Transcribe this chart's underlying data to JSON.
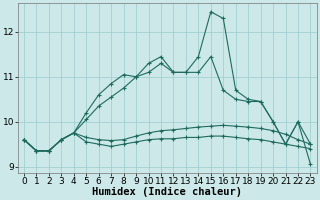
{
  "xlabel": "Humidex (Indice chaleur)",
  "background_color": "#cce8e8",
  "grid_color": "#99cccc",
  "line_color": "#1e6b5e",
  "x_values": [
    0,
    1,
    2,
    3,
    4,
    5,
    6,
    7,
    8,
    9,
    10,
    11,
    12,
    13,
    14,
    15,
    16,
    17,
    18,
    19,
    20,
    21,
    22,
    23
  ],
  "series": [
    [
      9.6,
      9.35,
      9.35,
      9.6,
      9.75,
      9.55,
      9.5,
      9.45,
      9.5,
      9.55,
      9.6,
      9.62,
      9.62,
      9.65,
      9.65,
      9.68,
      9.68,
      9.65,
      9.62,
      9.6,
      9.55,
      9.5,
      9.45,
      9.4
    ],
    [
      9.6,
      9.35,
      9.35,
      9.6,
      9.75,
      9.65,
      9.6,
      9.58,
      9.6,
      9.68,
      9.75,
      9.8,
      9.82,
      9.85,
      9.88,
      9.9,
      9.92,
      9.9,
      9.88,
      9.85,
      9.8,
      9.72,
      9.6,
      9.5
    ],
    [
      9.6,
      9.35,
      9.35,
      9.6,
      9.75,
      10.05,
      10.35,
      10.55,
      10.75,
      11.0,
      11.1,
      11.3,
      11.1,
      11.1,
      11.1,
      11.45,
      10.7,
      10.5,
      10.45,
      10.45,
      10.0,
      9.5,
      10.0,
      9.5
    ],
    [
      9.6,
      9.35,
      9.35,
      9.6,
      9.75,
      10.2,
      10.6,
      10.85,
      11.05,
      11.0,
      11.3,
      11.45,
      11.1,
      11.1,
      11.45,
      12.45,
      12.3,
      10.7,
      10.5,
      10.45,
      10.0,
      9.5,
      10.0,
      9.05
    ]
  ],
  "ylim": [
    8.85,
    12.65
  ],
  "xlim": [
    -0.5,
    23.5
  ],
  "yticks": [
    9,
    10,
    11,
    12
  ],
  "xticks": [
    0,
    1,
    2,
    3,
    4,
    5,
    6,
    7,
    8,
    9,
    10,
    11,
    12,
    13,
    14,
    15,
    16,
    17,
    18,
    19,
    20,
    21,
    22,
    23
  ],
  "tick_fontsize": 6.5,
  "axis_fontsize": 7.5
}
